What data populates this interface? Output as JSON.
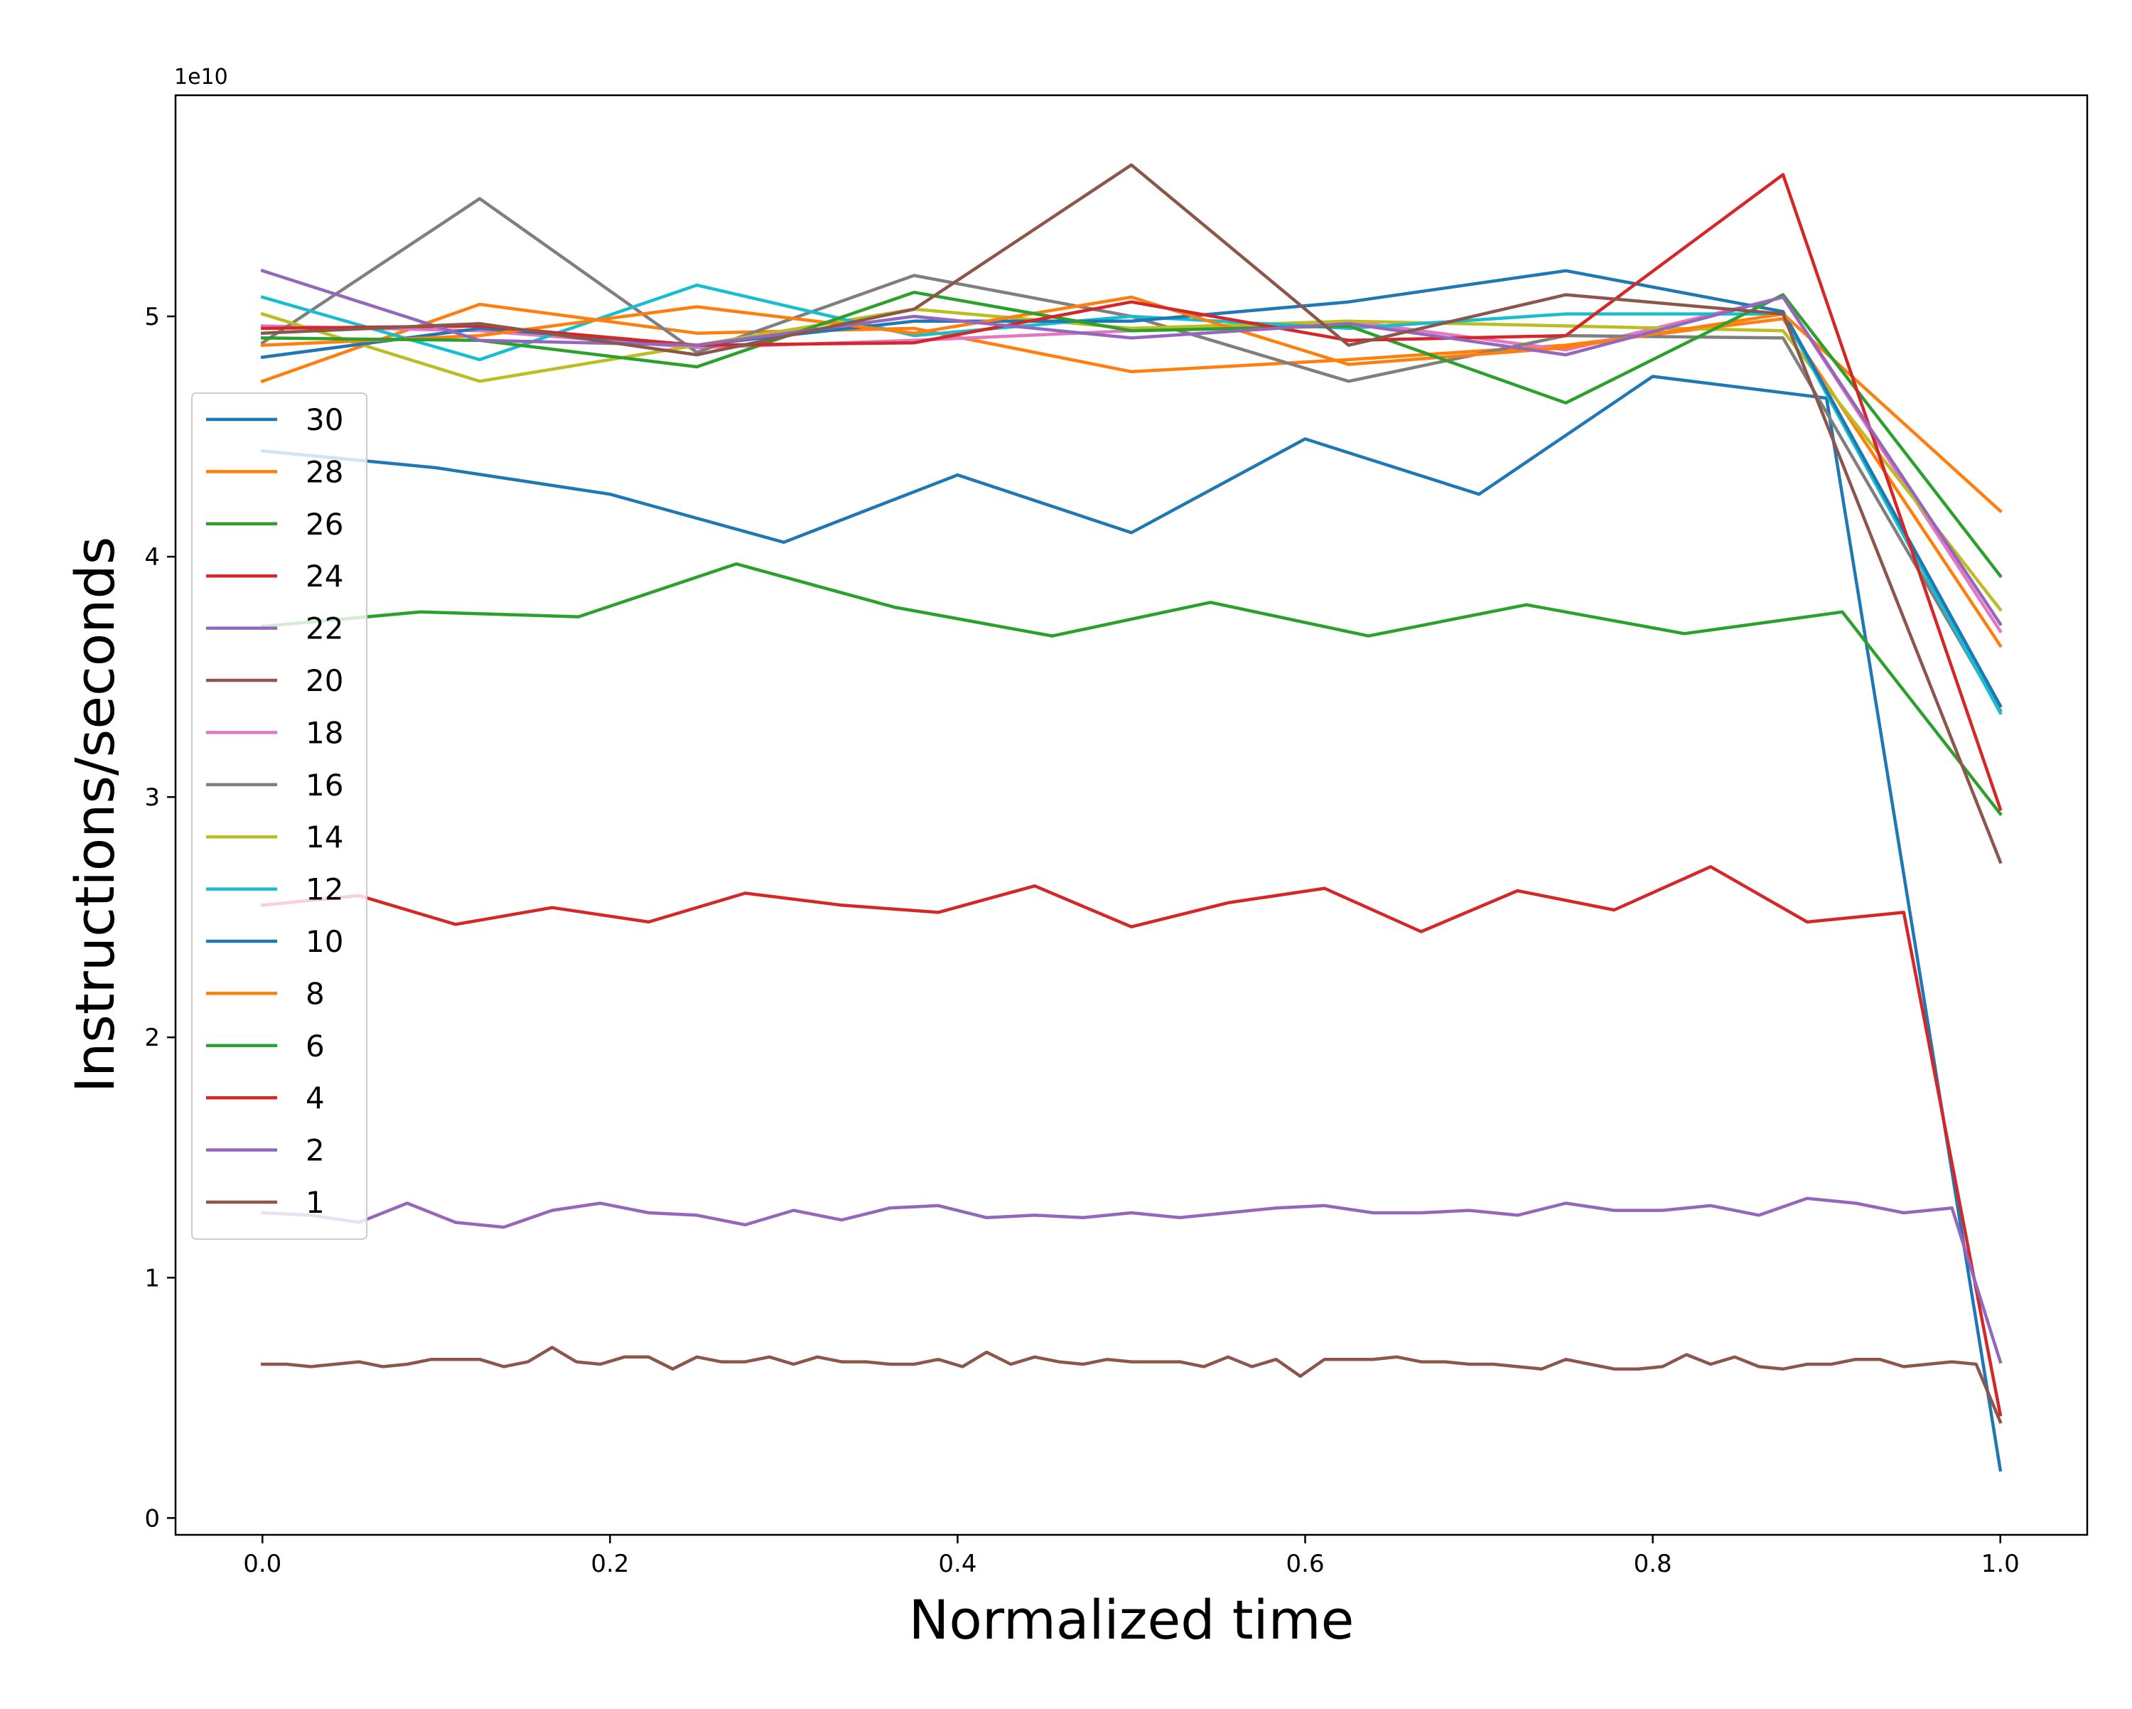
{
  "chart_data": {
    "type": "line",
    "title": "",
    "xlabel": "Normalized time",
    "ylabel": "Instructions/seconds",
    "y_scale_label": "1e10",
    "xlim": [
      -0.05,
      1.05
    ],
    "ylim": [
      -0.07,
      5.92
    ],
    "x_ticks": [
      {
        "value": 0.0,
        "label": "0.0"
      },
      {
        "value": 0.2,
        "label": "0.2"
      },
      {
        "value": 0.4,
        "label": "0.4"
      },
      {
        "value": 0.6,
        "label": "0.6"
      },
      {
        "value": 0.8,
        "label": "0.8"
      },
      {
        "value": 1.0,
        "label": "1.0"
      }
    ],
    "y_ticks": [
      {
        "value": 0,
        "label": "0"
      },
      {
        "value": 1,
        "label": "1"
      },
      {
        "value": 2,
        "label": "2"
      },
      {
        "value": 3,
        "label": "3"
      },
      {
        "value": 4,
        "label": "4"
      },
      {
        "value": 5,
        "label": "5"
      }
    ],
    "grid": false,
    "legend_position": "center-left",
    "series": [
      {
        "name": "30",
        "color": "#1f77b4",
        "x": [
          0,
          0.1,
          0.2,
          0.3,
          0.4,
          0.5,
          0.6,
          0.7,
          0.8,
          0.9,
          1.0
        ],
        "y": [
          4.44,
          4.37,
          4.26,
          4.06,
          4.34,
          4.1,
          4.49,
          4.26,
          4.75,
          4.66,
          0.2
        ]
      },
      {
        "name": "28",
        "color": "#ff7f0e",
        "x": [
          0,
          0.125,
          0.25,
          0.375,
          0.5,
          0.625,
          0.75,
          0.875,
          1.0
        ],
        "y": [
          4.73,
          5.05,
          4.93,
          4.95,
          4.77,
          4.82,
          4.88,
          4.99,
          3.63
        ]
      },
      {
        "name": "26",
        "color": "#2ca02c",
        "x": [
          0,
          0.0909,
          0.1818,
          0.2727,
          0.3636,
          0.4545,
          0.5455,
          0.6364,
          0.7273,
          0.8182,
          0.9091,
          1.0
        ],
        "y": [
          3.71,
          3.77,
          3.75,
          3.97,
          3.79,
          3.67,
          3.81,
          3.67,
          3.8,
          3.68,
          3.77,
          2.93
        ]
      },
      {
        "name": "24",
        "color": "#d62728",
        "x": [
          0,
          0.0556,
          0.1111,
          0.1667,
          0.2222,
          0.2778,
          0.3333,
          0.3889,
          0.4444,
          0.5,
          0.5556,
          0.6111,
          0.6667,
          0.7222,
          0.7778,
          0.8333,
          0.8889,
          0.9444,
          1.0
        ],
        "y": [
          2.55,
          2.59,
          2.47,
          2.54,
          2.48,
          2.6,
          2.55,
          2.52,
          2.63,
          2.46,
          2.56,
          2.62,
          2.44,
          2.61,
          2.53,
          2.71,
          2.48,
          2.52,
          0.43
        ]
      },
      {
        "name": "22",
        "color": "#9467bd",
        "x": [
          0,
          0.0278,
          0.0556,
          0.0833,
          0.1111,
          0.1389,
          0.1667,
          0.1944,
          0.2222,
          0.25,
          0.2778,
          0.3056,
          0.3333,
          0.3611,
          0.3889,
          0.4167,
          0.4444,
          0.4722,
          0.5,
          0.5278,
          0.5556,
          0.5833,
          0.6111,
          0.6389,
          0.6667,
          0.6944,
          0.7222,
          0.75,
          0.7778,
          0.8056,
          0.8333,
          0.8611,
          0.8889,
          0.9167,
          0.9444,
          0.9722,
          1.0
        ],
        "y": [
          1.27,
          1.26,
          1.23,
          1.31,
          1.23,
          1.21,
          1.28,
          1.31,
          1.27,
          1.26,
          1.22,
          1.28,
          1.24,
          1.29,
          1.3,
          1.25,
          1.26,
          1.25,
          1.27,
          1.25,
          1.27,
          1.29,
          1.3,
          1.27,
          1.27,
          1.28,
          1.26,
          1.31,
          1.28,
          1.28,
          1.3,
          1.26,
          1.33,
          1.31,
          1.27,
          1.29,
          0.65
        ]
      },
      {
        "name": "20",
        "color": "#8c564b",
        "x": [
          0,
          0.0139,
          0.0278,
          0.0417,
          0.0556,
          0.0694,
          0.0833,
          0.0972,
          0.1111,
          0.125,
          0.1389,
          0.1528,
          0.1667,
          0.1806,
          0.1944,
          0.2083,
          0.2222,
          0.2361,
          0.25,
          0.2639,
          0.2778,
          0.2917,
          0.3056,
          0.3194,
          0.3333,
          0.3472,
          0.3611,
          0.375,
          0.3889,
          0.4028,
          0.4167,
          0.4306,
          0.4444,
          0.4583,
          0.4722,
          0.4861,
          0.5,
          0.5139,
          0.5278,
          0.5417,
          0.5556,
          0.5694,
          0.5833,
          0.5972,
          0.6111,
          0.625,
          0.6389,
          0.6528,
          0.6667,
          0.6806,
          0.6944,
          0.7083,
          0.7222,
          0.7361,
          0.75,
          0.7639,
          0.7778,
          0.7917,
          0.8056,
          0.8194,
          0.8333,
          0.8472,
          0.8611,
          0.875,
          0.8889,
          0.9028,
          0.9167,
          0.9306,
          0.9444,
          0.9583,
          0.9722,
          0.9861,
          1.0
        ],
        "y": [
          0.64,
          0.64,
          0.63,
          0.64,
          0.65,
          0.63,
          0.64,
          0.66,
          0.66,
          0.66,
          0.63,
          0.65,
          0.71,
          0.65,
          0.64,
          0.67,
          0.67,
          0.62,
          0.67,
          0.65,
          0.65,
          0.67,
          0.64,
          0.67,
          0.65,
          0.65,
          0.64,
          0.64,
          0.66,
          0.63,
          0.69,
          0.64,
          0.67,
          0.65,
          0.64,
          0.66,
          0.65,
          0.65,
          0.65,
          0.63,
          0.67,
          0.63,
          0.66,
          0.59,
          0.66,
          0.66,
          0.66,
          0.67,
          0.65,
          0.65,
          0.64,
          0.64,
          0.63,
          0.62,
          0.66,
          0.64,
          0.62,
          0.62,
          0.63,
          0.68,
          0.64,
          0.67,
          0.63,
          0.62,
          0.64,
          0.64,
          0.66,
          0.66,
          0.63,
          0.64,
          0.65,
          0.64,
          0.4
        ]
      },
      {
        "name": "18",
        "color": "#e377c2",
        "x": [
          0,
          0.125,
          0.25,
          0.375,
          0.5,
          0.625,
          0.75,
          0.875,
          1.0
        ],
        "y": [
          4.96,
          4.94,
          4.87,
          4.9,
          4.94,
          4.98,
          4.86,
          5.08,
          3.69
        ]
      },
      {
        "name": "16",
        "color": "#7f7f7f",
        "x": [
          0,
          0.125,
          0.25,
          0.375,
          0.5,
          0.625,
          0.75,
          0.875,
          1.0
        ],
        "y": [
          4.89,
          5.49,
          4.85,
          5.17,
          5.0,
          4.73,
          4.92,
          4.91,
          3.36
        ]
      },
      {
        "name": "14",
        "color": "#bcbd22",
        "x": [
          0,
          0.125,
          0.25,
          0.375,
          0.5,
          0.625,
          0.75,
          0.875,
          1.0
        ],
        "y": [
          5.01,
          4.73,
          4.88,
          5.03,
          4.95,
          4.98,
          4.96,
          4.94,
          3.78
        ]
      },
      {
        "name": "12",
        "color": "#17becf",
        "x": [
          0,
          0.125,
          0.25,
          0.375,
          0.5,
          0.625,
          0.75,
          0.875,
          1.0
        ],
        "y": [
          5.08,
          4.82,
          5.13,
          4.92,
          5.0,
          4.95,
          5.01,
          5.01,
          3.35
        ]
      },
      {
        "name": "10",
        "color": "#1f77b4",
        "x": [
          0,
          0.125,
          0.25,
          0.375,
          0.5,
          0.625,
          0.75,
          0.875,
          1.0
        ],
        "y": [
          4.83,
          4.95,
          4.88,
          4.98,
          4.98,
          5.06,
          5.19,
          5.02,
          3.38
        ]
      },
      {
        "name": "8",
        "color": "#ff7f0e",
        "x": [
          0,
          0.125,
          0.25,
          0.375,
          0.5,
          0.625,
          0.75,
          0.875,
          1.0
        ],
        "y": [
          4.88,
          4.92,
          5.04,
          4.93,
          5.08,
          4.8,
          4.87,
          5.01,
          4.19
        ]
      },
      {
        "name": "6",
        "color": "#2ca02c",
        "x": [
          0,
          0.125,
          0.25,
          0.375,
          0.5,
          0.625,
          0.75,
          0.875,
          1.0
        ],
        "y": [
          4.91,
          4.9,
          4.79,
          5.1,
          4.94,
          4.96,
          4.64,
          5.09,
          3.92
        ]
      },
      {
        "name": "4",
        "color": "#d62728",
        "x": [
          0,
          0.125,
          0.25,
          0.375,
          0.5,
          0.625,
          0.75,
          0.875,
          1.0
        ],
        "y": [
          4.95,
          4.96,
          4.88,
          4.89,
          5.06,
          4.9,
          4.92,
          5.59,
          2.95
        ]
      },
      {
        "name": "2",
        "color": "#9467bd",
        "x": [
          0,
          0.125,
          0.25,
          0.375,
          0.5,
          0.625,
          0.75,
          0.875,
          1.0
        ],
        "y": [
          5.19,
          4.9,
          4.88,
          5.0,
          4.91,
          4.97,
          4.84,
          5.08,
          3.72
        ]
      },
      {
        "name": "1",
        "color": "#8c564b",
        "x": [
          0,
          0.125,
          0.25,
          0.375,
          0.5,
          0.625,
          0.75,
          0.875,
          1.0
        ],
        "y": [
          4.93,
          4.97,
          4.84,
          5.03,
          5.63,
          4.88,
          5.09,
          5.01,
          2.73
        ]
      }
    ]
  }
}
